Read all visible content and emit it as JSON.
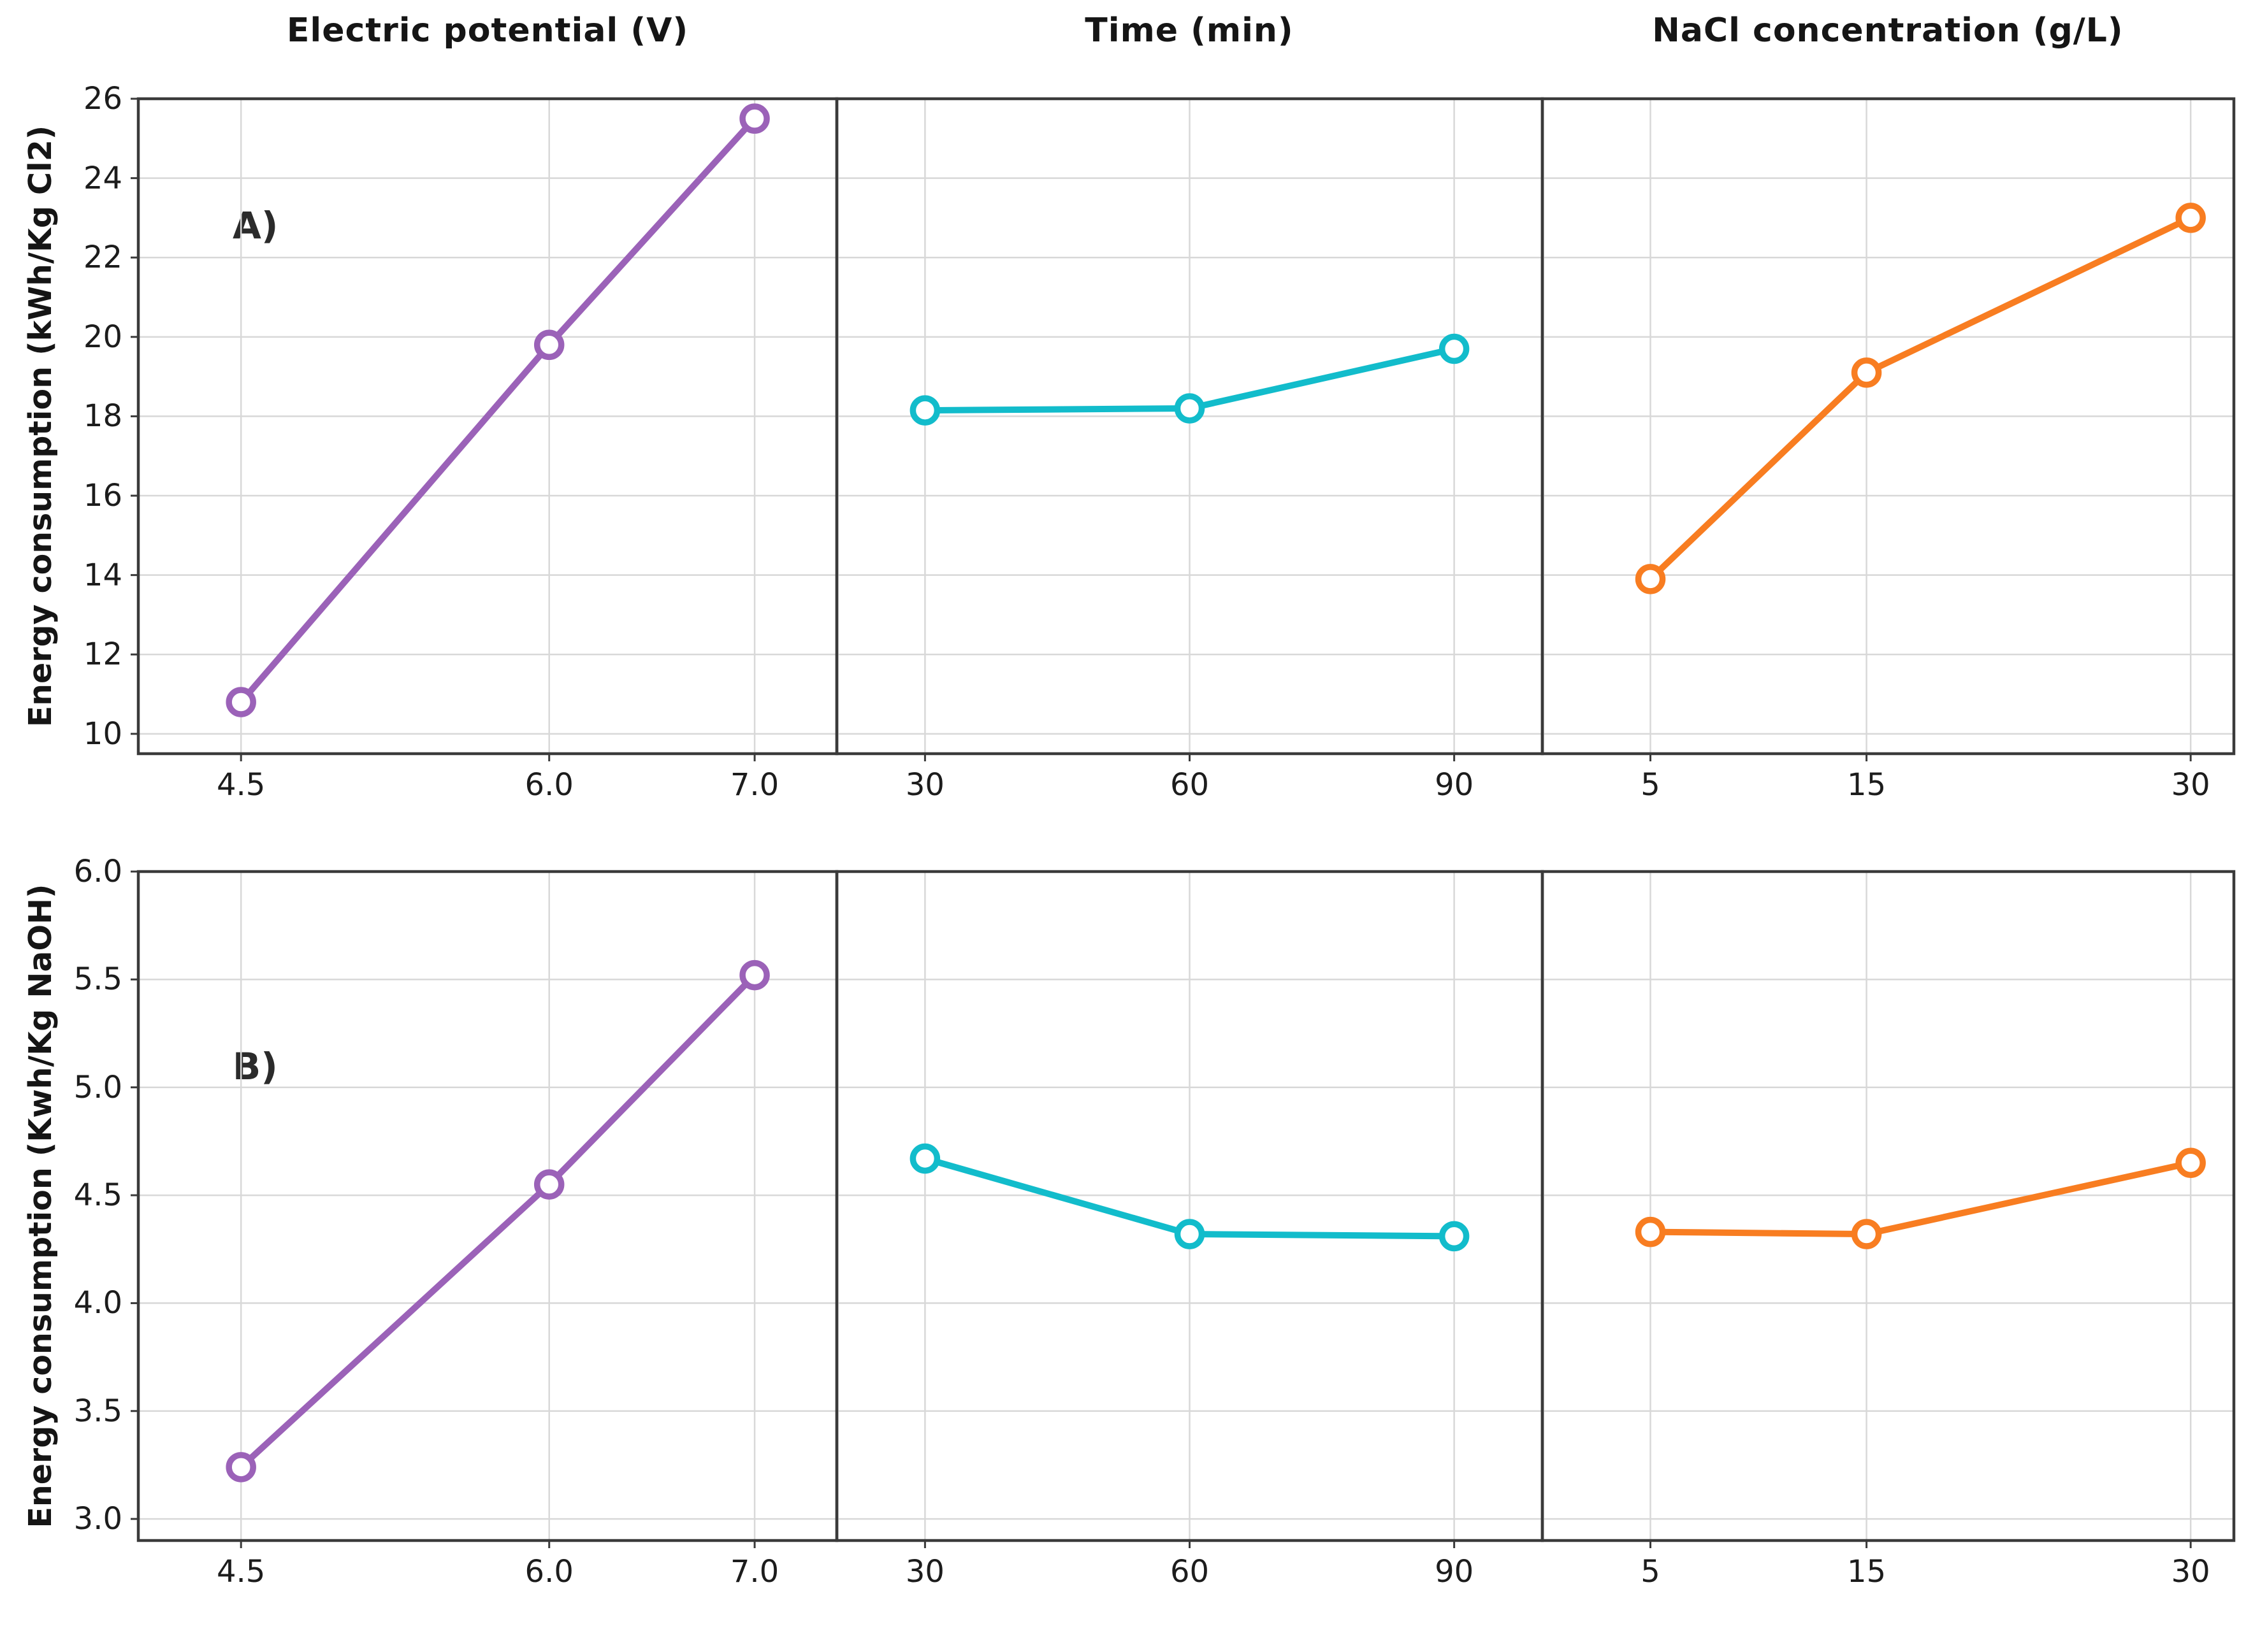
{
  "figure": {
    "background": "#ffffff",
    "border_color": "#3a3a3a",
    "grid_color": "#d8d8d8",
    "marker_fill": "#ffffff"
  },
  "chart_data": {
    "type": "line",
    "layout": "2-row by 3-column main effects grid, shared y-axis per row",
    "grid": "on",
    "legend": "none",
    "columns": [
      {
        "title": "Electric potential (V)",
        "color": "#9b62b8",
        "x": [
          4.5,
          6.0,
          7.0
        ],
        "xtick_labels": [
          "4.5",
          "6.0",
          "7.0"
        ],
        "xlim": [
          4.0,
          7.4
        ]
      },
      {
        "title": "Time (min)",
        "color": "#12bccb",
        "x": [
          30,
          60,
          90
        ],
        "xtick_labels": [
          "30",
          "60",
          "90"
        ],
        "xlim": [
          20,
          100
        ]
      },
      {
        "title": "NaCl concentration (g/L)",
        "color": "#f87d21",
        "x": [
          5,
          15,
          30
        ],
        "xtick_labels": [
          "5",
          "15",
          "30"
        ],
        "xlim": [
          0,
          32
        ]
      }
    ],
    "rows": [
      {
        "label": "A)",
        "ylabel": "Energy consumption (kWh/Kg Cl2)",
        "ylim": [
          9.5,
          26
        ],
        "yticks": [
          10,
          12,
          14,
          16,
          18,
          20,
          22,
          24,
          26
        ],
        "ytick_labels": [
          "10",
          "12",
          "14",
          "16",
          "18",
          "20",
          "22",
          "24",
          "26"
        ],
        "series": [
          [
            10.8,
            19.8,
            25.5
          ],
          [
            18.15,
            18.2,
            19.7
          ],
          [
            13.9,
            19.1,
            23.0
          ]
        ]
      },
      {
        "label": "B)",
        "ylabel": "Energy consumption (Kwh/Kg NaOH)",
        "ylim": [
          2.9,
          6.0
        ],
        "yticks": [
          3.0,
          3.5,
          4.0,
          4.5,
          5.0,
          5.5,
          6.0
        ],
        "ytick_labels": [
          "3.0",
          "3.5",
          "4.0",
          "4.5",
          "5.0",
          "5.5",
          "6.0"
        ],
        "series": [
          [
            3.24,
            4.55,
            5.52
          ],
          [
            4.67,
            4.32,
            4.31
          ],
          [
            4.33,
            4.32,
            4.65
          ]
        ]
      }
    ]
  }
}
